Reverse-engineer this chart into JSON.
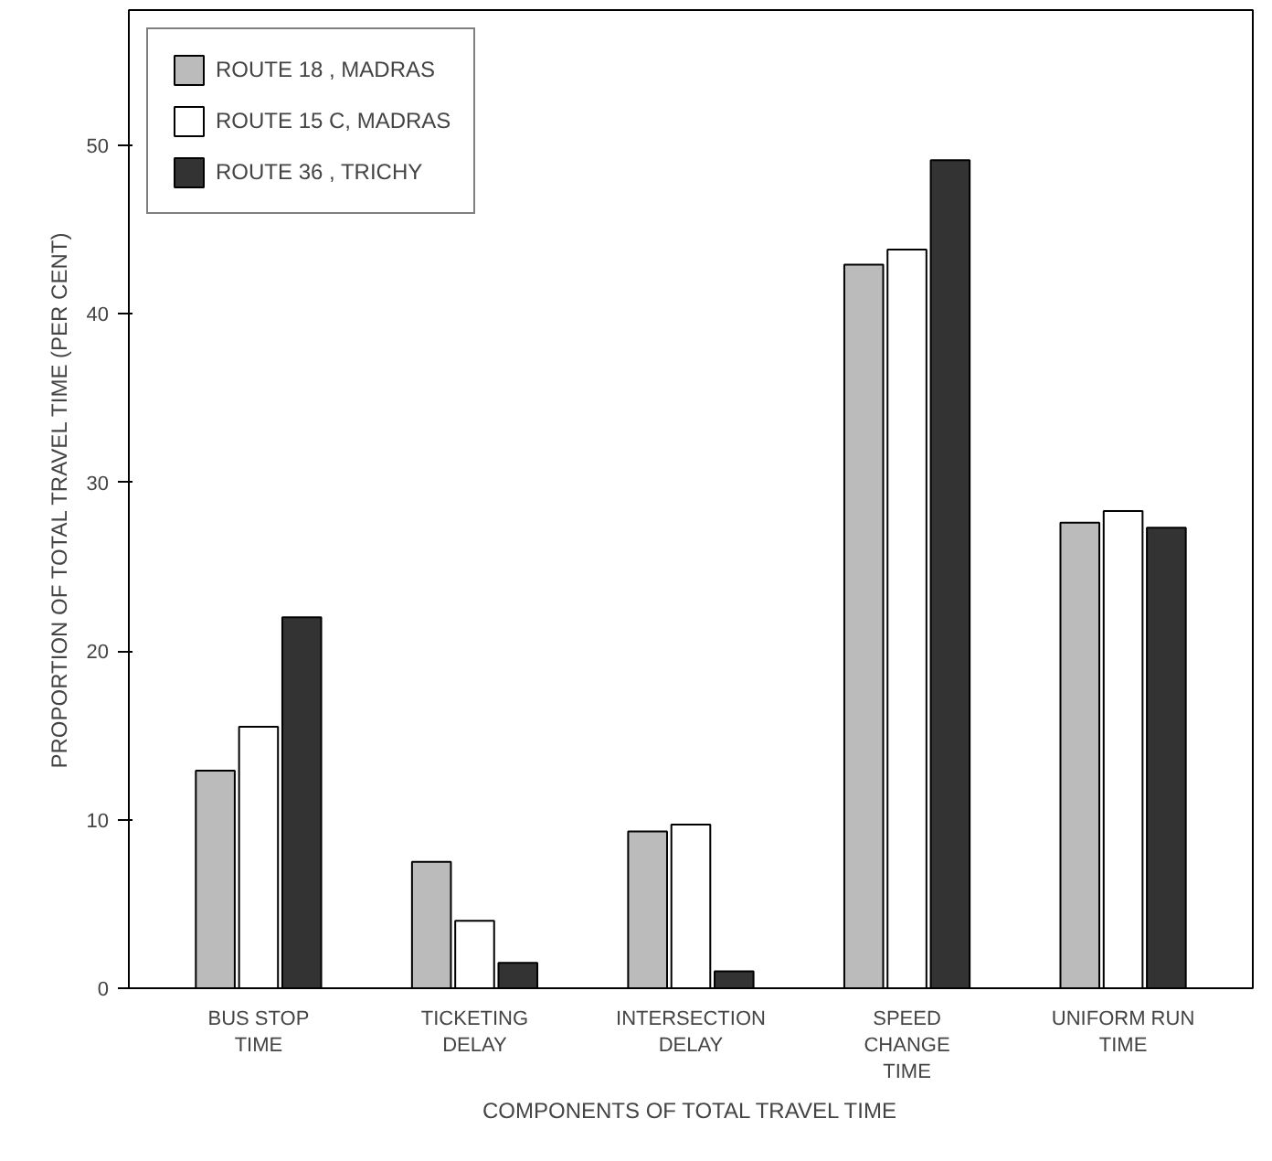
{
  "chart_data": {
    "type": "bar",
    "xlabel": "COMPONENTS OF TOTAL TRAVEL TIME",
    "ylabel": "PROPORTION OF TOTAL TRAVEL TIME (PER CENT)",
    "categories": [
      "BUS STOP\nTIME",
      "TICKETING\nDELAY",
      "INTERSECTION\nDELAY",
      "SPEED\nCHANGE\nTIME",
      "UNIFORM RUN\nTIME"
    ],
    "series": [
      {
        "name": "ROUTE 18 , MADRAS",
        "color": "#bbbbbb",
        "values": [
          12.9,
          7.5,
          9.3,
          42.9,
          27.6
        ]
      },
      {
        "name": "ROUTE 15 C, MADRAS",
        "color": "#ffffff",
        "values": [
          15.5,
          4,
          9.7,
          43.8,
          28.3
        ]
      },
      {
        "name": "ROUTE 36 , TRICHY",
        "color": "#333333",
        "values": [
          22,
          1.5,
          1,
          49.1,
          27.3
        ]
      }
    ],
    "ylim": [
      0,
      58
    ],
    "yticks": [
      0,
      10,
      20,
      30,
      40,
      50
    ],
    "grid": false,
    "legend": "top left"
  }
}
